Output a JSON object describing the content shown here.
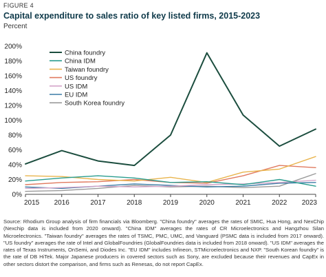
{
  "figure_label": "FIGURE 4",
  "title": "Capital expenditure to sales ratio of key listed firms, 2015-2023",
  "unit_label": "Percent",
  "source_note": "Source: Rhodium Group analysis of firm financials via Bloomberg. \"China foundry\" averages the rates of SMIC, Hua Hong, and NexChip (Nexchip data is included from 2020 onward). \"China IDM\" averages the rates of CR Microelectronics and Hangzhou Silan Microelectronics. \"Taiwan foundry\" averages the rates of TSMC, PMC, UMC, and Vanguard (PSMC data is included from 2017 onward). \"US foundry\" averages the rate of Intel and GlobalFoundries (GlobalFoundries data is included from 2018 onward). \"US IDM\" averages the rates of Texas Instruments, OnSemi, and Diodes Inc. \"EU IDM\" includes Infineon, STMicroelectronics and NXP. \"South Korean foundry\" is the rate of DB HiTek. Major Japanese producers in covered sectors such as Sony, are excluded because their revenues and CapEx in other sectors distort the comparison, and firms such as Renesas, do not report CapEx.",
  "chart_data": {
    "type": "line",
    "x": [
      2015,
      2016,
      2017,
      2018,
      2019,
      2020,
      2021,
      2022,
      2023
    ],
    "ylim": [
      0,
      200
    ],
    "yticks": [
      0,
      20,
      40,
      60,
      80,
      100,
      120,
      140,
      160,
      180,
      200
    ],
    "ytick_labels": [
      "0%",
      "20%",
      "40%",
      "60%",
      "80%",
      "100%",
      "120%",
      "140%",
      "160%",
      "180%",
      "200%"
    ],
    "xtick_labels": [
      "2015",
      "2016",
      "2017",
      "2018",
      "2019",
      "2020",
      "2021",
      "2022",
      "2023"
    ],
    "grid": false,
    "legend_position": "top-left",
    "series": [
      {
        "name": "China foundry",
        "color": "#1b4d3e",
        "width": 2,
        "values": [
          41,
          59,
          45,
          39,
          80,
          191,
          107,
          65,
          88
        ]
      },
      {
        "name": "China IDM",
        "color": "#2a9d8f",
        "width": 1.4,
        "values": [
          18,
          22,
          25,
          22,
          16,
          17,
          13,
          20,
          11
        ]
      },
      {
        "name": "Taiwan foundry",
        "color": "#e9b44c",
        "width": 1.4,
        "values": [
          25,
          24,
          20,
          18,
          23,
          16,
          30,
          34,
          51
        ]
      },
      {
        "name": "US foundry",
        "color": "#e07a5f",
        "width": 1.4,
        "values": [
          13,
          16,
          17,
          20,
          16,
          15,
          25,
          39,
          36
        ]
      },
      {
        "name": "US IDM",
        "color": "#d4a5c9",
        "width": 1.4,
        "values": [
          8,
          9,
          11,
          10,
          11,
          13,
          14,
          16,
          19
        ]
      },
      {
        "name": "EU IDM",
        "color": "#3a7ca5",
        "width": 1.4,
        "values": [
          10,
          8,
          11,
          14,
          12,
          10,
          11,
          15,
          16
        ]
      },
      {
        "name": "South Korea foundry",
        "color": "#9a9a9a",
        "width": 1.4,
        "values": [
          4,
          5,
          8,
          12,
          10,
          11,
          9,
          11,
          28
        ]
      }
    ]
  }
}
